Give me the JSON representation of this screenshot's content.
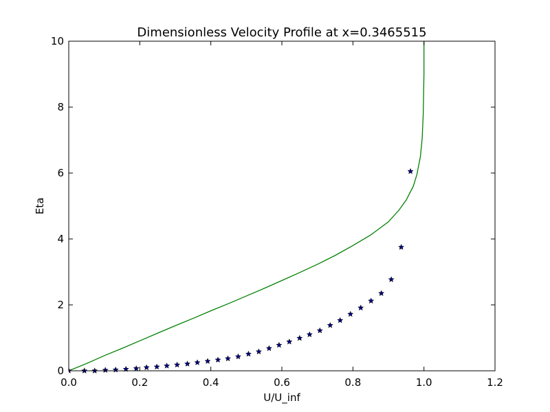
{
  "chart_data": {
    "type": "scatter",
    "title": "Dimensionless Velocity Profile at x=0.3465515",
    "xlabel": "U/U_inf",
    "ylabel": "Eta",
    "xlim": [
      0,
      1.2
    ],
    "ylim": [
      0,
      10
    ],
    "xticks": [
      0.0,
      0.2,
      0.4,
      0.6,
      0.8,
      1.0,
      1.2
    ],
    "xtick_labels": [
      "0.0",
      "0.2",
      "0.4",
      "0.6",
      "0.8",
      "1.0",
      "1.2"
    ],
    "yticks": [
      0,
      2,
      4,
      6,
      8,
      10
    ],
    "ytick_labels": [
      "0",
      "2",
      "4",
      "6",
      "8",
      "10"
    ],
    "grid": false,
    "series": [
      {
        "type": "line",
        "color": "#008000",
        "x": [
          0.0,
          0.05,
          0.1,
          0.15,
          0.2,
          0.25,
          0.3,
          0.35,
          0.4,
          0.45,
          0.5,
          0.55,
          0.6,
          0.65,
          0.7,
          0.75,
          0.8,
          0.85,
          0.9,
          0.93,
          0.95,
          0.97,
          0.98,
          0.99,
          0.995,
          0.998,
          1.0,
          1.0
        ],
        "y": [
          0.0,
          0.22,
          0.46,
          0.68,
          0.91,
          1.14,
          1.37,
          1.59,
          1.82,
          2.04,
          2.27,
          2.5,
          2.74,
          2.98,
          3.23,
          3.5,
          3.8,
          4.12,
          4.52,
          4.88,
          5.18,
          5.6,
          5.95,
          6.5,
          7.05,
          7.8,
          9.0,
          10.0
        ]
      },
      {
        "type": "scatter",
        "marker": "star",
        "color": "#00007f",
        "x": [
          0.0,
          0.044,
          0.073,
          0.103,
          0.132,
          0.161,
          0.19,
          0.219,
          0.248,
          0.276,
          0.305,
          0.334,
          0.362,
          0.391,
          0.42,
          0.448,
          0.477,
          0.506,
          0.535,
          0.564,
          0.592,
          0.621,
          0.65,
          0.678,
          0.707,
          0.736,
          0.764,
          0.793,
          0.822,
          0.851,
          0.88,
          0.908,
          0.936,
          0.962
        ],
        "y": [
          0.0,
          0.0,
          0.0,
          0.02,
          0.03,
          0.05,
          0.07,
          0.1,
          0.12,
          0.15,
          0.18,
          0.21,
          0.25,
          0.29,
          0.33,
          0.37,
          0.43,
          0.51,
          0.58,
          0.68,
          0.78,
          0.88,
          0.99,
          1.1,
          1.22,
          1.38,
          1.53,
          1.72,
          1.91,
          2.12,
          2.35,
          2.77,
          3.75,
          6.05
        ]
      }
    ]
  }
}
